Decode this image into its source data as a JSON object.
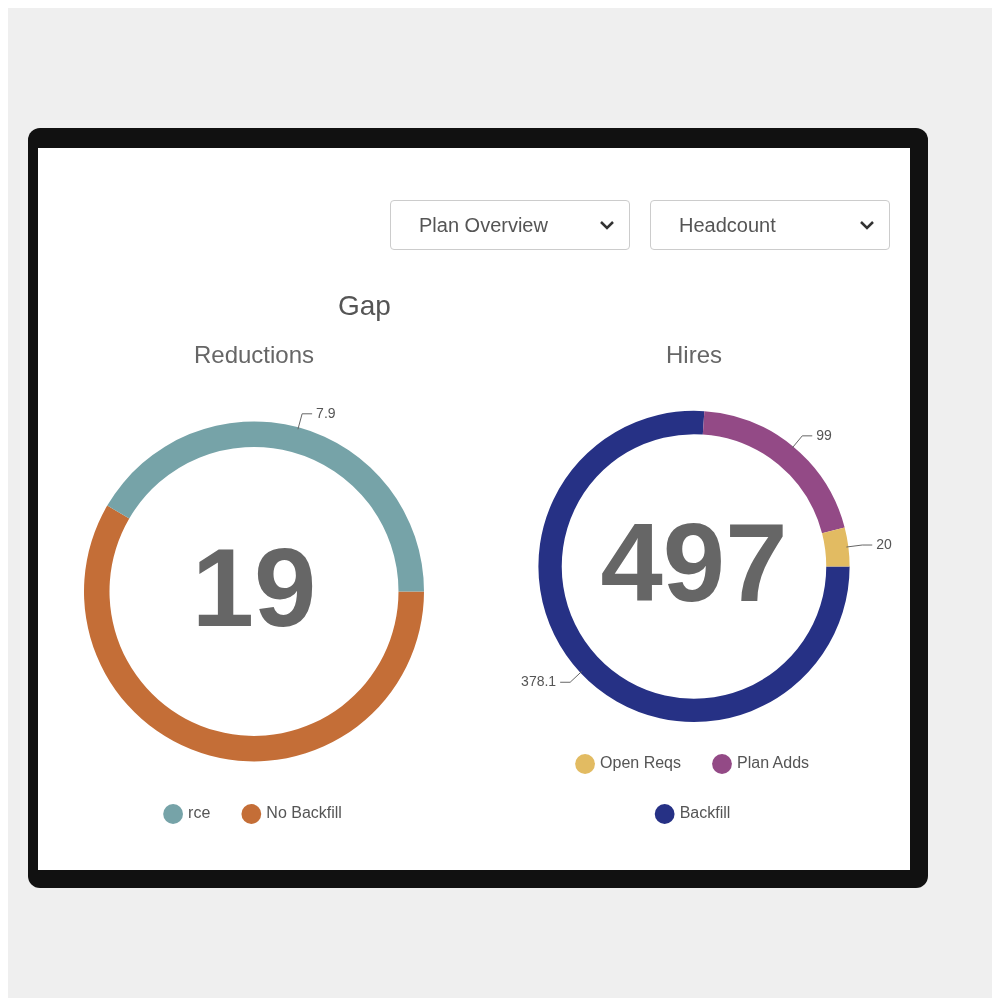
{
  "chart_data": [
    {
      "type": "other",
      "title": "Gap",
      "annotations": [
        "Plan Overview",
        "Headcount"
      ]
    },
    {
      "type": "donut",
      "title": "Reductions",
      "categories": [
        "No Backfill",
        "rce"
      ],
      "values": [
        11.1,
        7.9
      ],
      "colors": [
        "#c46e37",
        "#76a3a8"
      ],
      "value_labels": [
        null,
        "7.9"
      ],
      "annotations": [
        "19"
      ],
      "legend": "bottom"
    },
    {
      "type": "donut",
      "title": "Hires",
      "categories": [
        "Backfill",
        "Plan Adds",
        "Open Reqs"
      ],
      "values": [
        378.1,
        99,
        20
      ],
      "colors": [
        "#263185",
        "#934a86",
        "#e2bb62"
      ],
      "data_labels": true,
      "annotations": [
        "497"
      ],
      "legend": "bottom"
    }
  ]
}
